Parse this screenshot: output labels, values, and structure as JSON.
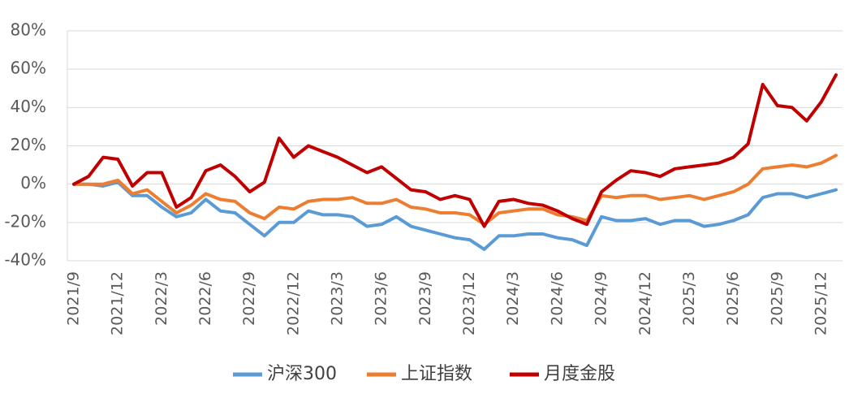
{
  "chart_data": {
    "type": "line",
    "title": "",
    "xlabel": "",
    "ylabel": "",
    "ylim": [
      -40,
      80
    ],
    "y_ticks": [
      80,
      60,
      40,
      20,
      0,
      -20,
      -40
    ],
    "y_tick_labels": [
      "80%",
      "60%",
      "40%",
      "20%",
      "0%",
      "-20%",
      "-40%"
    ],
    "x_tick_labels": [
      "2021/9",
      "2021/12",
      "2022/3",
      "2022/6",
      "2022/9",
      "2022/12",
      "2023/3",
      "2023/6",
      "2023/9",
      "2023/12",
      "2024/3",
      "2024/6",
      "2024/9",
      "2024/12",
      "2025/3",
      "2025/6",
      "2025/9",
      "2025/12"
    ],
    "x_tick_indices": [
      0,
      3,
      6,
      9,
      12,
      15,
      18,
      21,
      24,
      27,
      30,
      33,
      36,
      39,
      42,
      45,
      48,
      51
    ],
    "grid": "horizontal",
    "legend": "bottom-center",
    "series": [
      {
        "name": "沪深300",
        "color": "#5B9BD5",
        "values": [
          0,
          0,
          -1,
          1,
          -6,
          -6,
          -12,
          -17,
          -15,
          -8,
          -14,
          -15,
          -21,
          -27,
          -20,
          -20,
          -14,
          -16,
          -16,
          -17,
          -22,
          -21,
          -17,
          -22,
          -24,
          -26,
          -28,
          -29,
          -34,
          -27,
          -27,
          -26,
          -26,
          -28,
          -29,
          -32,
          -17,
          -19,
          -19,
          -18,
          -21,
          -19,
          -19,
          -22,
          -21,
          -19,
          -16,
          -7,
          -5,
          -5,
          -7,
          -5,
          -3
        ]
      },
      {
        "name": "上证指数",
        "color": "#ED7D31",
        "values": [
          0,
          0,
          0,
          2,
          -5,
          -3,
          -9,
          -15,
          -11,
          -5,
          -8,
          -9,
          -15,
          -18,
          -12,
          -13,
          -9,
          -8,
          -8,
          -7,
          -10,
          -10,
          -8,
          -12,
          -13,
          -15,
          -15,
          -16,
          -21,
          -15,
          -14,
          -13,
          -13,
          -16,
          -17,
          -19,
          -6,
          -7,
          -6,
          -6,
          -8,
          -7,
          -6,
          -8,
          -6,
          -4,
          0,
          8,
          9,
          10,
          9,
          11,
          15
        ]
      },
      {
        "name": "月度金股",
        "color": "#C00000",
        "values": [
          0,
          4,
          14,
          13,
          -1,
          6,
          6,
          -12,
          -7,
          7,
          10,
          4,
          -4,
          1,
          24,
          14,
          20,
          17,
          14,
          10,
          6,
          9,
          3,
          -3,
          -4,
          -8,
          -6,
          -8,
          -22,
          -9,
          -8,
          -10,
          -11,
          -14,
          -18,
          -21,
          -4,
          2,
          7,
          6,
          4,
          8,
          9,
          10,
          11,
          14,
          21,
          52,
          41,
          40,
          33,
          43,
          57
        ]
      }
    ]
  }
}
